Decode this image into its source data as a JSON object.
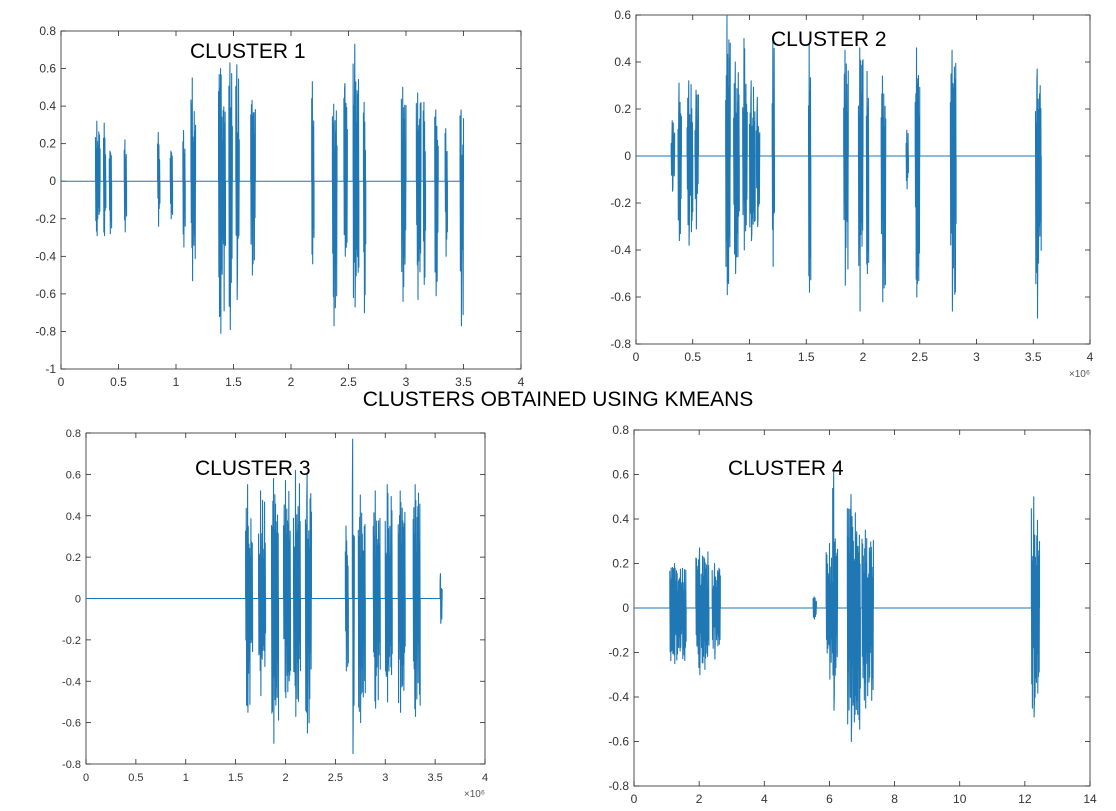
{
  "figure": {
    "title": "CLUSTERS OBTAINED USING KMEANS",
    "line_color": "#1f77b4",
    "axes_color": "#262626"
  },
  "chart_data": [
    {
      "type": "line",
      "title": "CLUSTER 1",
      "xlim": [
        0,
        4
      ],
      "ylim": [
        -1,
        0.8
      ],
      "x_ticks": [
        "0",
        "0.5",
        "1",
        "1.5",
        "2",
        "2.5",
        "3",
        "3.5",
        "4"
      ],
      "y_ticks": [
        "0.8",
        "0.6",
        "0.4",
        "0.2",
        "0",
        "-0.2",
        "-0.4",
        "-0.6",
        "-0.8",
        "-1"
      ],
      "x_multiplier": "",
      "signal_end": 3.5,
      "bursts": [
        {
          "x": 0.3,
          "width": 0.04,
          "max": 0.32,
          "min": -0.29
        },
        {
          "x": 0.37,
          "width": 0.02,
          "max": 0.31,
          "min": -0.29
        },
        {
          "x": 0.42,
          "width": 0.02,
          "max": 0.16,
          "min": -0.28
        },
        {
          "x": 0.55,
          "width": 0.02,
          "max": 0.22,
          "min": -0.27
        },
        {
          "x": 0.84,
          "width": 0.02,
          "max": 0.26,
          "min": -0.24
        },
        {
          "x": 0.95,
          "width": 0.02,
          "max": 0.16,
          "min": -0.2
        },
        {
          "x": 1.06,
          "width": 0.02,
          "max": 0.27,
          "min": -0.35
        },
        {
          "x": 1.13,
          "width": 0.04,
          "max": 0.55,
          "min": -0.53
        },
        {
          "x": 1.37,
          "width": 0.06,
          "max": 0.6,
          "min": -0.81
        },
        {
          "x": 1.46,
          "width": 0.03,
          "max": 0.63,
          "min": -0.79
        },
        {
          "x": 1.52,
          "width": 0.03,
          "max": 0.62,
          "min": -0.63
        },
        {
          "x": 1.65,
          "width": 0.04,
          "max": 0.43,
          "min": -0.5
        },
        {
          "x": 2.18,
          "width": 0.02,
          "max": 0.53,
          "min": -0.44
        },
        {
          "x": 2.36,
          "width": 0.04,
          "max": 0.41,
          "min": -0.77
        },
        {
          "x": 2.46,
          "width": 0.03,
          "max": 0.52,
          "min": -0.4
        },
        {
          "x": 2.54,
          "width": 0.05,
          "max": 0.73,
          "min": -0.67
        },
        {
          "x": 2.63,
          "width": 0.02,
          "max": 0.42,
          "min": -0.7
        },
        {
          "x": 2.96,
          "width": 0.04,
          "max": 0.5,
          "min": -0.64
        },
        {
          "x": 3.09,
          "width": 0.04,
          "max": 0.47,
          "min": -0.63
        },
        {
          "x": 3.15,
          "width": 0.02,
          "max": 0.42,
          "min": -0.55
        },
        {
          "x": 3.25,
          "width": 0.03,
          "max": 0.38,
          "min": -0.61
        },
        {
          "x": 3.34,
          "width": 0.02,
          "max": 0.28,
          "min": -0.4
        },
        {
          "x": 3.47,
          "width": 0.03,
          "max": 0.38,
          "min": -0.77
        }
      ]
    },
    {
      "type": "line",
      "title": "CLUSTER 2",
      "xlim": [
        0,
        4
      ],
      "ylim": [
        -0.8,
        0.6
      ],
      "x_ticks": [
        "0",
        "0.5",
        "1",
        "1.5",
        "2",
        "2.5",
        "3",
        "3.5",
        "4"
      ],
      "y_ticks": [
        "0.6",
        "0.4",
        "0.2",
        "0",
        "-0.2",
        "-0.4",
        "-0.6",
        "-0.8"
      ],
      "x_multiplier": "×10⁶",
      "signal_end": 3.55,
      "bursts": [
        {
          "x": 0.31,
          "width": 0.03,
          "max": 0.15,
          "min": -0.15
        },
        {
          "x": 0.37,
          "width": 0.03,
          "max": 0.31,
          "min": -0.36
        },
        {
          "x": 0.45,
          "width": 0.05,
          "max": 0.32,
          "min": -0.38
        },
        {
          "x": 0.52,
          "width": 0.03,
          "max": 0.28,
          "min": -0.31
        },
        {
          "x": 0.79,
          "width": 0.04,
          "max": 0.6,
          "min": -0.59
        },
        {
          "x": 0.86,
          "width": 0.05,
          "max": 0.4,
          "min": -0.5
        },
        {
          "x": 0.94,
          "width": 0.04,
          "max": 0.5,
          "min": -0.4
        },
        {
          "x": 1.0,
          "width": 0.05,
          "max": 0.32,
          "min": -0.36
        },
        {
          "x": 1.06,
          "width": 0.03,
          "max": 0.25,
          "min": -0.3
        },
        {
          "x": 1.2,
          "width": 0.02,
          "max": 0.51,
          "min": -0.47
        },
        {
          "x": 1.52,
          "width": 0.02,
          "max": 0.48,
          "min": -0.58
        },
        {
          "x": 1.83,
          "width": 0.04,
          "max": 0.45,
          "min": -0.55
        },
        {
          "x": 1.96,
          "width": 0.04,
          "max": 0.46,
          "min": -0.66
        },
        {
          "x": 2.03,
          "width": 0.02,
          "max": 0.36,
          "min": -0.5
        },
        {
          "x": 2.16,
          "width": 0.04,
          "max": 0.34,
          "min": -0.62
        },
        {
          "x": 2.38,
          "width": 0.02,
          "max": 0.11,
          "min": -0.14
        },
        {
          "x": 2.46,
          "width": 0.04,
          "max": 0.46,
          "min": -0.6
        },
        {
          "x": 2.77,
          "width": 0.05,
          "max": 0.45,
          "min": -0.66
        },
        {
          "x": 3.52,
          "width": 0.05,
          "max": 0.37,
          "min": -0.69
        }
      ]
    },
    {
      "type": "line",
      "title": "CLUSTER 3",
      "xlim": [
        0,
        4
      ],
      "ylim": [
        -0.8,
        0.8
      ],
      "x_ticks": [
        "0",
        "0.5",
        "1",
        "1.5",
        "2",
        "2.5",
        "3",
        "3.5",
        "4"
      ],
      "y_ticks": [
        "0.8",
        "0.6",
        "0.4",
        "0.2",
        "0",
        "-0.2",
        "-0.4",
        "-0.6",
        "-0.8"
      ],
      "x_multiplier": "×10⁶",
      "signal_end": 3.55,
      "bursts": [
        {
          "x": 1.6,
          "width": 0.07,
          "max": 0.55,
          "min": -0.55
        },
        {
          "x": 1.73,
          "width": 0.07,
          "max": 0.52,
          "min": -0.47
        },
        {
          "x": 1.86,
          "width": 0.07,
          "max": 0.58,
          "min": -0.7
        },
        {
          "x": 1.98,
          "width": 0.07,
          "max": 0.57,
          "min": -0.48
        },
        {
          "x": 2.08,
          "width": 0.07,
          "max": 0.62,
          "min": -0.57
        },
        {
          "x": 2.2,
          "width": 0.06,
          "max": 0.6,
          "min": -0.65
        },
        {
          "x": 2.6,
          "width": 0.03,
          "max": 0.35,
          "min": -0.35
        },
        {
          "x": 2.67,
          "width": 0.02,
          "max": 0.77,
          "min": -0.75
        },
        {
          "x": 2.73,
          "width": 0.07,
          "max": 0.5,
          "min": -0.6
        },
        {
          "x": 2.88,
          "width": 0.07,
          "max": 0.52,
          "min": -0.53
        },
        {
          "x": 3.0,
          "width": 0.07,
          "max": 0.55,
          "min": -0.5
        },
        {
          "x": 3.13,
          "width": 0.07,
          "max": 0.52,
          "min": -0.55
        },
        {
          "x": 3.28,
          "width": 0.07,
          "max": 0.55,
          "min": -0.57
        },
        {
          "x": 3.55,
          "width": 0.02,
          "max": 0.12,
          "min": -0.12
        }
      ]
    },
    {
      "type": "line",
      "title": "CLUSTER 4",
      "xlim": [
        0,
        14
      ],
      "ylim": [
        -0.8,
        0.8
      ],
      "x_ticks": [
        "0",
        "2",
        "4",
        "6",
        "8",
        "10",
        "12",
        "14"
      ],
      "y_ticks": [
        "0.8",
        "0.6",
        "0.4",
        "0.2",
        "0",
        "-0.2",
        "-0.4",
        "-0.6",
        "-0.8"
      ],
      "x_multiplier": "",
      "signal_end": 12.4,
      "bursts": [
        {
          "x": 1.1,
          "width": 0.5,
          "max": 0.2,
          "min": -0.25
        },
        {
          "x": 1.9,
          "width": 0.4,
          "max": 0.27,
          "min": -0.3
        },
        {
          "x": 2.4,
          "width": 0.25,
          "max": 0.2,
          "min": -0.23
        },
        {
          "x": 5.5,
          "width": 0.1,
          "max": 0.05,
          "min": -0.05
        },
        {
          "x": 5.9,
          "width": 0.35,
          "max": 0.29,
          "min": -0.32
        },
        {
          "x": 6.1,
          "width": 0.1,
          "max": 0.62,
          "min": -0.46
        },
        {
          "x": 6.55,
          "width": 0.4,
          "max": 0.51,
          "min": -0.6
        },
        {
          "x": 7.0,
          "width": 0.35,
          "max": 0.35,
          "min": -0.45
        },
        {
          "x": 12.2,
          "width": 0.25,
          "max": 0.5,
          "min": -0.49
        }
      ]
    }
  ]
}
